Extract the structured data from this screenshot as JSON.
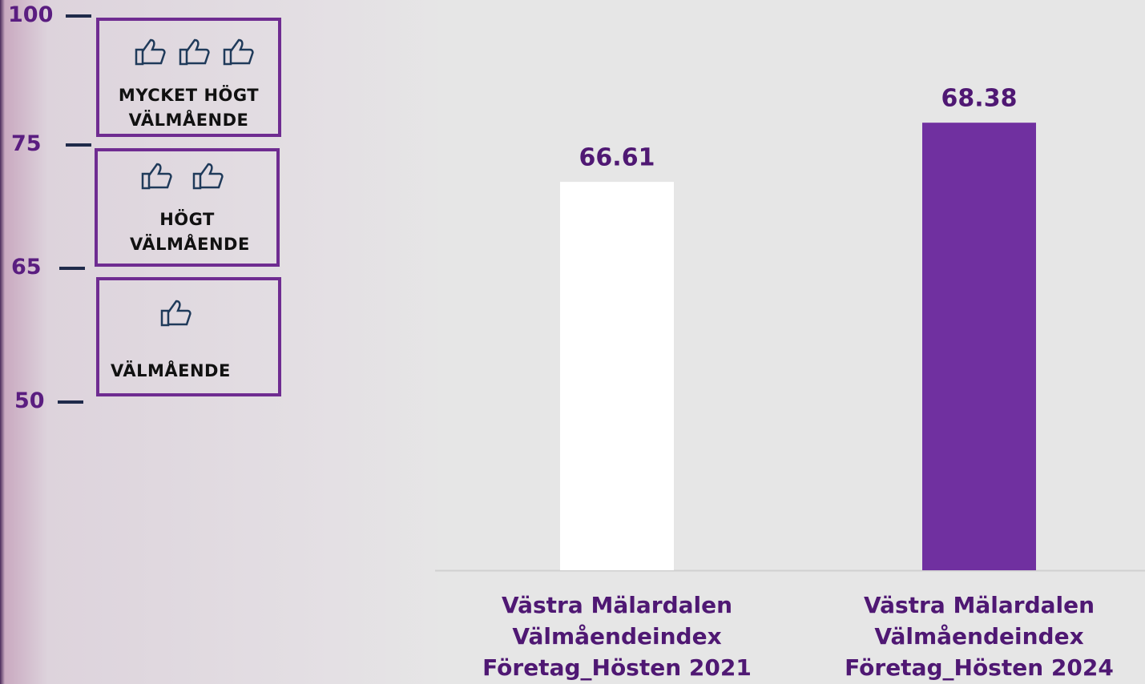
{
  "chart_data": {
    "type": "bar",
    "categories": [
      "Västra Mälardalen Välmåendeindex Företag_Hösten 2021",
      "Västra Mälardalen Välmåendeindex Företag_Hösten 2024"
    ],
    "series": [
      {
        "name": null,
        "colors": [
          "#ffffff",
          "#7030a0"
        ],
        "values": [
          66.61,
          68.38
        ]
      }
    ],
    "ylim": [
      55,
      72
    ]
  },
  "scale": {
    "ticks": [
      100,
      75,
      65,
      50
    ],
    "levels": [
      "MYCKET HÖGT VÄLMÅENDE",
      "HÖGT VÄLMÅENDE",
      "VÄLMÅENDE"
    ]
  }
}
